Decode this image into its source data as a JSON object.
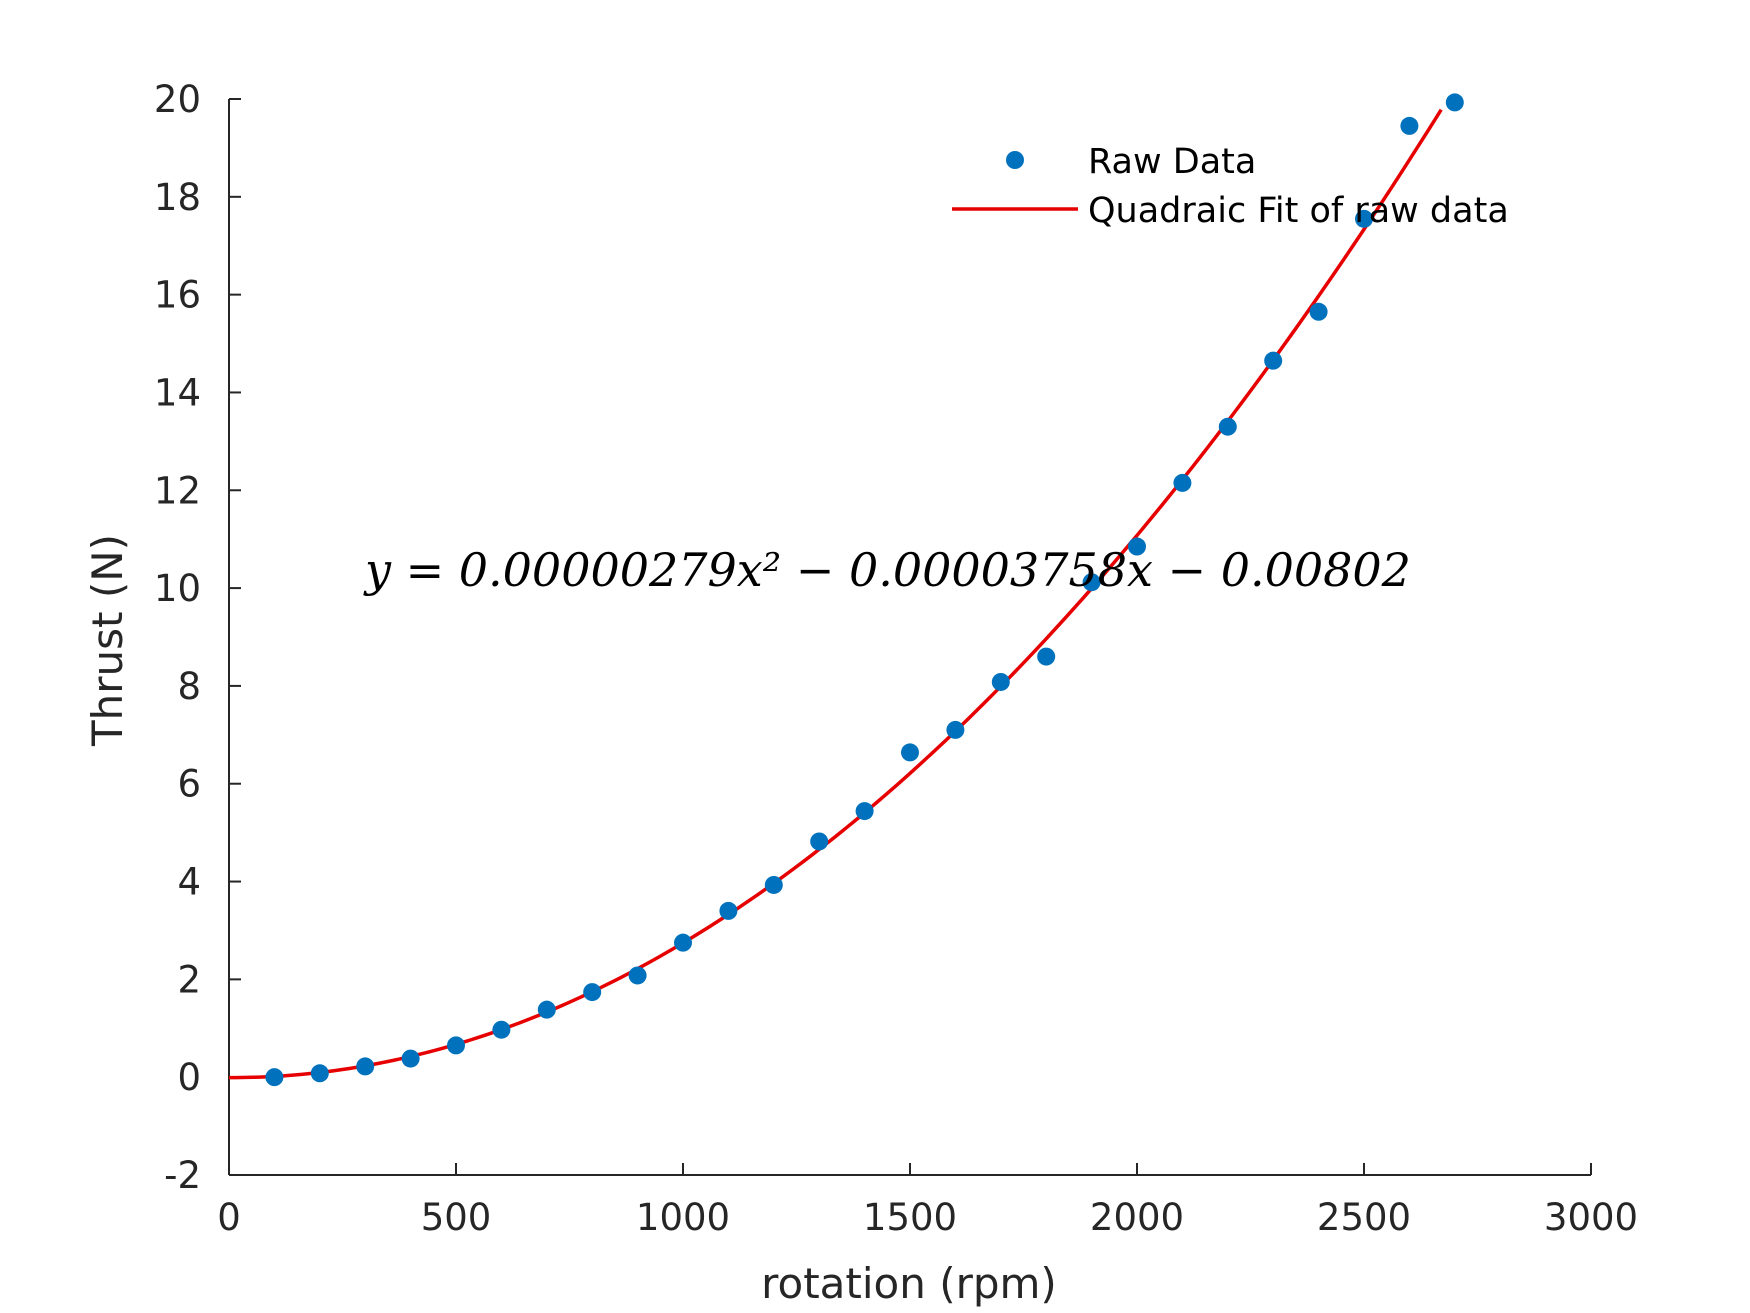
{
  "chart_data": {
    "type": "scatter",
    "xlabel": "rotation (rpm)",
    "ylabel": "Thrust (N)",
    "xlim": [
      0,
      3000
    ],
    "ylim": [
      -2,
      20
    ],
    "xticks": [
      0,
      500,
      1000,
      1500,
      2000,
      2500,
      3000
    ],
    "yticks": [
      -2,
      0,
      2,
      4,
      6,
      8,
      10,
      12,
      14,
      16,
      18,
      20
    ],
    "xtick_labels": [
      "0",
      "500",
      "1000",
      "1500",
      "2000",
      "2500",
      "3000"
    ],
    "ytick_labels": [
      "-2",
      "0",
      "2",
      "4",
      "6",
      "8",
      "10",
      "12",
      "14",
      "16",
      "18",
      "20"
    ],
    "grid": false,
    "legend": {
      "placement": "top-right",
      "box": false
    },
    "annotation": "y = 0.00000279x² − 0.00003758x − 0.00802",
    "fit": {
      "a": 2.79e-06,
      "b": -3.758e-05,
      "c": -0.00802,
      "x_range": [
        0,
        2670
      ]
    },
    "series": [
      {
        "name": "Raw Data",
        "kind": "scatter",
        "color": "#0072BD",
        "x": [
          100,
          200,
          300,
          400,
          500,
          600,
          700,
          800,
          900,
          1000,
          1100,
          1200,
          1300,
          1400,
          1500,
          1600,
          1700,
          1800,
          1900,
          2000,
          2100,
          2200,
          2300,
          2400,
          2500,
          2600,
          2700
        ],
        "y": [
          0.0,
          0.08,
          0.22,
          0.38,
          0.65,
          0.97,
          1.38,
          1.74,
          2.08,
          2.75,
          3.4,
          3.93,
          4.82,
          5.44,
          6.64,
          7.1,
          8.08,
          8.6,
          10.12,
          10.85,
          12.15,
          13.3,
          14.65,
          15.65,
          17.55,
          19.45,
          19.93
        ]
      },
      {
        "name": "Quadraic Fit of raw data",
        "kind": "line",
        "color": "#E60000"
      }
    ]
  }
}
